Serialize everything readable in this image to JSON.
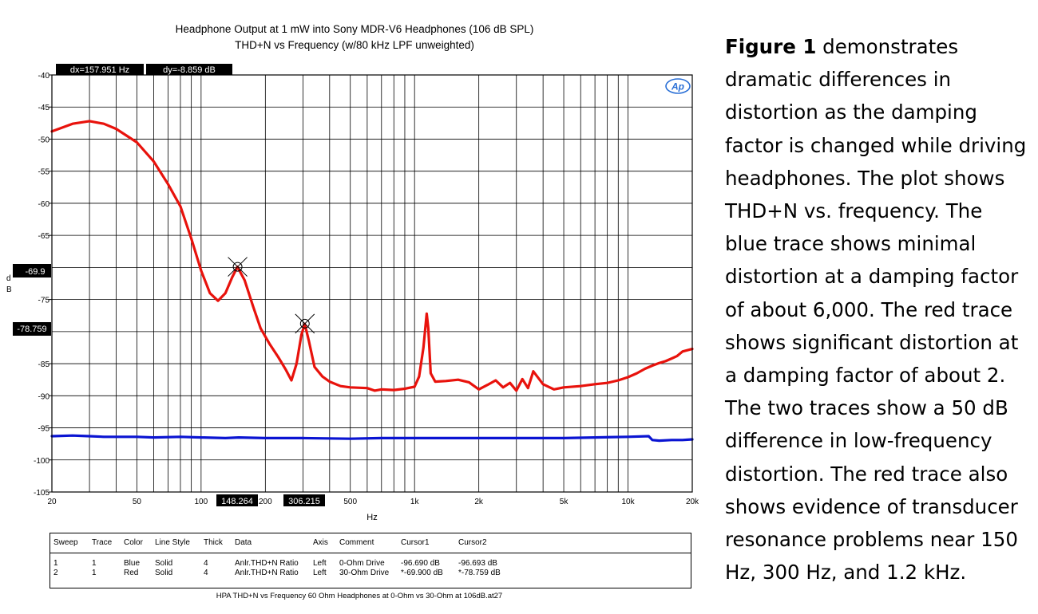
{
  "chart_data": {
    "type": "line",
    "title": "Headphone Output at 1 mW into Sony MDR-V6 Headphones (106 dB SPL)",
    "subtitle": "THD+N vs Frequency (w/80 kHz LPF unweighted)",
    "xlabel": "Hz",
    "ylabel": "d B",
    "xscale": "log",
    "xlim": [
      20,
      20000
    ],
    "ylim": [
      -105,
      -40
    ],
    "grid": true,
    "x_ticks": [
      {
        "value": 20,
        "label": "20"
      },
      {
        "value": 50,
        "label": "50"
      },
      {
        "value": 100,
        "label": "100"
      },
      {
        "value": 200,
        "label": "200"
      },
      {
        "value": 500,
        "label": "500"
      },
      {
        "value": 1000,
        "label": "1k"
      },
      {
        "value": 2000,
        "label": "2k"
      },
      {
        "value": 5000,
        "label": "5k"
      },
      {
        "value": 10000,
        "label": "10k"
      },
      {
        "value": 20000,
        "label": "20k"
      }
    ],
    "y_ticks": [
      {
        "value": -40,
        "label": "-40"
      },
      {
        "value": -45,
        "label": "-45"
      },
      {
        "value": -50,
        "label": "-50"
      },
      {
        "value": -55,
        "label": "-55"
      },
      {
        "value": -60,
        "label": "-60"
      },
      {
        "value": -65,
        "label": "-65"
      },
      {
        "value": -75,
        "label": "-75"
      },
      {
        "value": -85,
        "label": "-85"
      },
      {
        "value": -90,
        "label": "-90"
      },
      {
        "value": -95,
        "label": "-95"
      },
      {
        "value": -100,
        "label": "-100"
      },
      {
        "value": -105,
        "label": "-105"
      }
    ],
    "series": [
      {
        "color": "#0a14d2",
        "x": [
          20,
          25,
          30,
          35,
          40,
          50,
          60,
          80,
          100,
          130,
          150,
          200,
          300,
          500,
          700,
          1000,
          1500,
          2000,
          3000,
          5000,
          7000,
          10000,
          12500,
          13000,
          14000,
          16000,
          18000,
          20000
        ],
        "y": [
          -96.3,
          -96.2,
          -96.3,
          -96.4,
          -96.4,
          -96.4,
          -96.5,
          -96.4,
          -96.5,
          -96.6,
          -96.5,
          -96.6,
          -96.6,
          -96.7,
          -96.6,
          -96.6,
          -96.6,
          -96.6,
          -96.6,
          -96.6,
          -96.5,
          -96.4,
          -96.3,
          -96.9,
          -97.0,
          -96.9,
          -96.9,
          -96.8
        ]
      },
      {
        "color": "#e8120c",
        "x": [
          20,
          25,
          30,
          35,
          40,
          50,
          60,
          70,
          80,
          90,
          100,
          110,
          120,
          130,
          140,
          148,
          160,
          175,
          190,
          210,
          230,
          250,
          265,
          280,
          295,
          306,
          320,
          340,
          370,
          400,
          450,
          500,
          600,
          650,
          700,
          800,
          900,
          1000,
          1050,
          1100,
          1140,
          1160,
          1190,
          1250,
          1400,
          1600,
          1800,
          2000,
          2200,
          2400,
          2600,
          2800,
          3000,
          3200,
          3400,
          3600,
          4000,
          4500,
          5000,
          6000,
          7000,
          8000,
          9000,
          10000,
          11000,
          12000,
          13000,
          14000,
          15000,
          16000,
          17000,
          18000,
          20000
        ],
        "y": [
          -48.8,
          -47.6,
          -47.2,
          -47.6,
          -48.4,
          -50.5,
          -53.5,
          -57.0,
          -60.5,
          -65.5,
          -70.5,
          -74.0,
          -75.2,
          -74.0,
          -71.5,
          -69.9,
          -72.0,
          -76.0,
          -79.5,
          -82.0,
          -84.0,
          -86.0,
          -87.6,
          -85.0,
          -80.5,
          -78.8,
          -81.5,
          -85.5,
          -87.0,
          -87.8,
          -88.5,
          -88.7,
          -88.8,
          -89.2,
          -89.0,
          -89.1,
          -88.9,
          -88.6,
          -87.0,
          -82.5,
          -77.2,
          -79.5,
          -86.5,
          -87.8,
          -87.7,
          -87.5,
          -87.9,
          -89.0,
          -88.3,
          -87.6,
          -88.7,
          -88.0,
          -89.2,
          -87.4,
          -88.8,
          -86.2,
          -88.2,
          -89.0,
          -88.7,
          -88.5,
          -88.2,
          -88.0,
          -87.6,
          -87.1,
          -86.5,
          -85.8,
          -85.3,
          -84.9,
          -84.6,
          -84.2,
          -83.8,
          -83.1,
          -82.7
        ]
      }
    ],
    "cursors": [
      {
        "x": 148.264,
        "y": -69.9
      },
      {
        "x": 306.215,
        "y": -78.759
      }
    ],
    "readouts": {
      "dx": "dx=157.951  Hz",
      "dy": "dy=-8.859  dB",
      "cursor1_x": "148.264",
      "cursor2_x": "306.215",
      "cursor1_y": "-69.9",
      "cursor2_y": "-78.759"
    },
    "ap_logo": "Ap"
  },
  "legend_table": {
    "headers": [
      "Sweep",
      "Trace",
      "Color",
      "Line Style",
      "Thick",
      "Data",
      "Axis",
      "Comment",
      "Cursor1",
      "Cursor2"
    ],
    "rows": [
      [
        "1",
        "1",
        "Blue",
        "Solid",
        "4",
        "Anlr.THD+N Ratio",
        "Left",
        "0-Ohm Drive",
        "-96.690  dB",
        "-96.693  dB"
      ],
      [
        "2",
        "1",
        "Red",
        "Solid",
        "4",
        "Anlr.THD+N Ratio",
        "Left",
        "30-Ohm Drive",
        "*-69.900  dB",
        "*-78.759  dB"
      ]
    ]
  },
  "footer": "HPA THD+N vs Frequency 60 Ohm Headphones at 0-Ohm vs 30-Ohm at 106dB.at27",
  "caption": {
    "bold": "Figure 1",
    "text": " demonstrates dramatic differences in distortion as the damping factor is changed while driving headphones.  The plot shows THD+N vs. frequency.  The blue trace shows minimal distortion at a damping factor of about 6,000.  The red trace shows significant distortion at a damping factor of about 2.  The two traces show a 50 dB difference in low-frequency distortion.  The red trace also shows evidence of transducer resonance problems near 150 Hz, 300 Hz, and 1.2 kHz."
  }
}
